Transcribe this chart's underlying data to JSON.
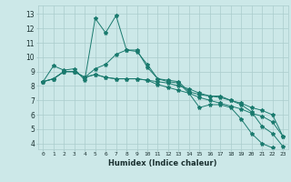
{
  "xlabel": "Humidex (Indice chaleur)",
  "ylabel": "",
  "bg_color": "#cce8e8",
  "line_color": "#1a7a6e",
  "grid_color": "#aacccc",
  "x_ticks": [
    0,
    1,
    2,
    3,
    4,
    5,
    6,
    7,
    8,
    9,
    10,
    11,
    12,
    13,
    14,
    15,
    16,
    17,
    18,
    19,
    20,
    21,
    22,
    23
  ],
  "y_ticks": [
    4,
    5,
    6,
    7,
    8,
    9,
    10,
    11,
    12,
    13
  ],
  "xlim": [
    -0.5,
    23.5
  ],
  "ylim": [
    3.6,
    13.6
  ],
  "series": [
    {
      "x": [
        0,
        1,
        2,
        3,
        4,
        5,
        6,
        7,
        8,
        9,
        10,
        11,
        12,
        13,
        14,
        15,
        16,
        17,
        18,
        19,
        20,
        21,
        22
      ],
      "y": [
        8.3,
        9.4,
        9.1,
        9.2,
        8.4,
        12.7,
        11.7,
        12.9,
        10.5,
        10.4,
        9.5,
        8.5,
        8.3,
        8.2,
        7.5,
        6.5,
        6.7,
        6.7,
        6.5,
        5.7,
        4.7,
        4.0,
        3.7
      ]
    },
    {
      "x": [
        0,
        1,
        2,
        3,
        4,
        5,
        6,
        7,
        8,
        9,
        10,
        11,
        12,
        13,
        14,
        15,
        16,
        17,
        18,
        19,
        20,
        21,
        22,
        23
      ],
      "y": [
        8.3,
        8.5,
        9.0,
        9.0,
        8.6,
        9.2,
        9.5,
        10.2,
        10.5,
        10.5,
        9.3,
        8.5,
        8.4,
        8.3,
        7.6,
        7.4,
        7.3,
        7.3,
        7.0,
        6.7,
        6.2,
        5.2,
        4.7,
        3.8
      ]
    },
    {
      "x": [
        0,
        1,
        2,
        3,
        4,
        5,
        6,
        7,
        8,
        9,
        10,
        11,
        12,
        13,
        14,
        15,
        16,
        17,
        18,
        19,
        20,
        21,
        22,
        23
      ],
      "y": [
        8.3,
        8.5,
        9.0,
        9.0,
        8.6,
        8.8,
        8.6,
        8.5,
        8.5,
        8.5,
        8.4,
        8.3,
        8.2,
        8.0,
        7.8,
        7.5,
        7.3,
        7.2,
        7.0,
        6.8,
        6.5,
        6.3,
        6.0,
        4.5
      ]
    },
    {
      "x": [
        0,
        1,
        2,
        3,
        4,
        5,
        6,
        7,
        8,
        9,
        10,
        11,
        12,
        13,
        14,
        15,
        16,
        17,
        18,
        19,
        20,
        21,
        22,
        23
      ],
      "y": [
        8.3,
        8.5,
        9.0,
        9.0,
        8.6,
        8.8,
        8.6,
        8.5,
        8.5,
        8.5,
        8.4,
        8.1,
        7.9,
        7.7,
        7.5,
        7.2,
        7.0,
        6.8,
        6.6,
        6.4,
        6.1,
        5.9,
        5.5,
        4.5
      ]
    }
  ]
}
